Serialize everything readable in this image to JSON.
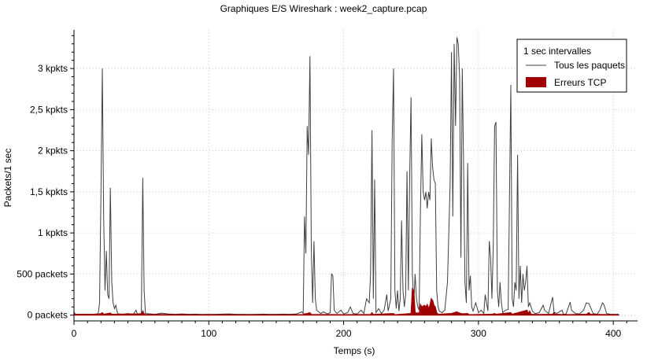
{
  "chart_data": {
    "type": "line",
    "title": "Graphiques E/S Wireshark : week2_capture.pcap",
    "xlabel": "Temps (s)",
    "ylabel": "Packets/1 sec",
    "xlim": [
      0,
      418
    ],
    "ylim": [
      -70,
      3470
    ],
    "x_ticks": [
      0,
      100,
      200,
      300,
      400
    ],
    "x_tick_labels": [
      "0",
      "100",
      "200",
      "300",
      "400"
    ],
    "y_ticks": [
      0,
      500,
      1000,
      1500,
      2000,
      2500,
      3000
    ],
    "y_tick_labels": [
      "0 packets",
      "500 packets",
      "1 kpkts",
      "1,5 kpkts",
      "2 kpkts",
      "2,5 kpkts",
      "3 kpkts"
    ],
    "grid": true,
    "legend": {
      "placement": "top-right",
      "title": "1 sec intervalles",
      "entries": [
        {
          "label": "Tous les paquets",
          "style": "line",
          "color": "#404040"
        },
        {
          "label": "Erreurs TCP",
          "style": "area",
          "color": "#a00000"
        }
      ]
    },
    "series": [
      {
        "name": "Tous les paquets",
        "color": "#404040",
        "points": [
          [
            0,
            40
          ],
          [
            1,
            10
          ],
          [
            3,
            5
          ],
          [
            6,
            8
          ],
          [
            9,
            12
          ],
          [
            12,
            5
          ],
          [
            15,
            10
          ],
          [
            18,
            20
          ],
          [
            19,
            150
          ],
          [
            20,
            1500
          ],
          [
            21,
            3000
          ],
          [
            22,
            1200
          ],
          [
            23,
            300
          ],
          [
            24,
            780
          ],
          [
            25,
            250
          ],
          [
            26,
            200
          ],
          [
            27,
            1550
          ],
          [
            28,
            400
          ],
          [
            29,
            150
          ],
          [
            30,
            80
          ],
          [
            31,
            120
          ],
          [
            32,
            40
          ],
          [
            33,
            15
          ],
          [
            36,
            10
          ],
          [
            40,
            20
          ],
          [
            44,
            10
          ],
          [
            46,
            60
          ],
          [
            47,
            15
          ],
          [
            50,
            20
          ],
          [
            51,
            1670
          ],
          [
            52,
            300
          ],
          [
            53,
            20
          ],
          [
            57,
            15
          ],
          [
            60,
            10
          ],
          [
            65,
            25
          ],
          [
            70,
            15
          ],
          [
            75,
            10
          ],
          [
            80,
            15
          ],
          [
            85,
            10
          ],
          [
            90,
            12
          ],
          [
            95,
            8
          ],
          [
            100,
            10
          ],
          [
            105,
            10
          ],
          [
            110,
            12
          ],
          [
            115,
            15
          ],
          [
            120,
            10
          ],
          [
            125,
            10
          ],
          [
            130,
            8
          ],
          [
            135,
            10
          ],
          [
            140,
            12
          ],
          [
            145,
            10
          ],
          [
            150,
            10
          ],
          [
            155,
            12
          ],
          [
            160,
            10
          ],
          [
            165,
            15
          ],
          [
            169,
            40
          ],
          [
            170,
            20
          ],
          [
            171,
            1200
          ],
          [
            172,
            750
          ],
          [
            173,
            2300
          ],
          [
            174,
            1950
          ],
          [
            175,
            3150
          ],
          [
            176,
            800
          ],
          [
            177,
            150
          ],
          [
            178,
            900
          ],
          [
            179,
            200
          ],
          [
            180,
            60
          ],
          [
            183,
            20
          ],
          [
            185,
            40
          ],
          [
            188,
            15
          ],
          [
            190,
            30
          ],
          [
            191,
            500
          ],
          [
            192,
            480
          ],
          [
            193,
            60
          ],
          [
            195,
            20
          ],
          [
            198,
            60
          ],
          [
            200,
            15
          ],
          [
            203,
            30
          ],
          [
            205,
            100
          ],
          [
            207,
            20
          ],
          [
            210,
            15
          ],
          [
            213,
            60
          ],
          [
            215,
            20
          ],
          [
            217,
            200
          ],
          [
            219,
            150
          ],
          [
            220,
            500
          ],
          [
            221,
            2250
          ],
          [
            222,
            200
          ],
          [
            223,
            1650
          ],
          [
            224,
            30
          ],
          [
            226,
            80
          ],
          [
            228,
            20
          ],
          [
            230,
            60
          ],
          [
            232,
            250
          ],
          [
            233,
            50
          ],
          [
            235,
            200
          ],
          [
            236,
            2100
          ],
          [
            237,
            3000
          ],
          [
            238,
            300
          ],
          [
            239,
            80
          ],
          [
            240,
            300
          ],
          [
            241,
            50
          ],
          [
            242,
            200
          ],
          [
            243,
            1150
          ],
          [
            244,
            300
          ],
          [
            245,
            100
          ],
          [
            246,
            250
          ],
          [
            247,
            1750
          ],
          [
            248,
            300
          ],
          [
            249,
            1700
          ],
          [
            250,
            2650
          ],
          [
            251,
            500
          ],
          [
            252,
            150
          ],
          [
            253,
            500
          ],
          [
            254,
            200
          ],
          [
            255,
            100
          ],
          [
            256,
            60
          ],
          [
            257,
            1300
          ],
          [
            258,
            2200
          ],
          [
            259,
            1500
          ],
          [
            260,
            1400
          ],
          [
            261,
            1500
          ],
          [
            262,
            1300
          ],
          [
            263,
            1500
          ],
          [
            264,
            1400
          ],
          [
            265,
            2150
          ],
          [
            266,
            1800
          ],
          [
            267,
            1650
          ],
          [
            268,
            1600
          ],
          [
            269,
            300
          ],
          [
            270,
            100
          ],
          [
            271,
            50
          ],
          [
            273,
            30
          ],
          [
            275,
            60
          ],
          [
            277,
            400
          ],
          [
            278,
            1000
          ],
          [
            279,
            1600
          ],
          [
            280,
            3200
          ],
          [
            281,
            1200
          ],
          [
            282,
            3300
          ],
          [
            283,
            2300
          ],
          [
            284,
            3380
          ],
          [
            285,
            3300
          ],
          [
            286,
            2900
          ],
          [
            287,
            700
          ],
          [
            288,
            3000
          ],
          [
            289,
            1800
          ],
          [
            290,
            400
          ],
          [
            291,
            150
          ],
          [
            292,
            1850
          ],
          [
            293,
            300
          ],
          [
            294,
            480
          ],
          [
            295,
            100
          ],
          [
            296,
            50
          ],
          [
            298,
            150
          ],
          [
            300,
            30
          ],
          [
            302,
            60
          ],
          [
            304,
            20
          ],
          [
            305,
            250
          ],
          [
            307,
            50
          ],
          [
            308,
            900
          ],
          [
            309,
            700
          ],
          [
            310,
            200
          ],
          [
            311,
            850
          ],
          [
            312,
            2300
          ],
          [
            313,
            2350
          ],
          [
            314,
            300
          ],
          [
            315,
            100
          ],
          [
            316,
            400
          ],
          [
            317,
            150
          ],
          [
            318,
            30
          ],
          [
            320,
            60
          ],
          [
            322,
            70
          ],
          [
            324,
            2800
          ],
          [
            325,
            200
          ],
          [
            326,
            100
          ],
          [
            327,
            400
          ],
          [
            328,
            300
          ],
          [
            329,
            1950
          ],
          [
            330,
            200
          ],
          [
            331,
            600
          ],
          [
            332,
            150
          ],
          [
            333,
            500
          ],
          [
            334,
            300
          ],
          [
            335,
            400
          ],
          [
            336,
            600
          ],
          [
            337,
            100
          ],
          [
            338,
            150
          ],
          [
            340,
            50
          ],
          [
            342,
            20
          ],
          [
            345,
            30
          ],
          [
            348,
            120
          ],
          [
            349,
            60
          ],
          [
            352,
            20
          ],
          [
            355,
            220
          ],
          [
            356,
            40
          ],
          [
            358,
            20
          ],
          [
            362,
            60
          ],
          [
            363,
            10
          ],
          [
            365,
            15
          ],
          [
            368,
            160
          ],
          [
            369,
            60
          ],
          [
            372,
            20
          ],
          [
            375,
            15
          ],
          [
            378,
            60
          ],
          [
            380,
            150
          ],
          [
            382,
            140
          ],
          [
            383,
            100
          ],
          [
            385,
            20
          ],
          [
            388,
            10
          ],
          [
            390,
            60
          ],
          [
            392,
            150
          ],
          [
            393,
            130
          ],
          [
            395,
            20
          ],
          [
            398,
            10
          ],
          [
            404,
            10
          ]
        ]
      },
      {
        "name": "Erreurs TCP",
        "color": "#a00000",
        "points": [
          [
            0,
            10
          ],
          [
            18,
            10
          ],
          [
            20,
            20
          ],
          [
            21,
            30
          ],
          [
            22,
            10
          ],
          [
            27,
            25
          ],
          [
            28,
            10
          ],
          [
            50,
            15
          ],
          [
            51,
            50
          ],
          [
            52,
            15
          ],
          [
            53,
            5
          ],
          [
            60,
            8
          ],
          [
            100,
            5
          ],
          [
            170,
            5
          ],
          [
            171,
            15
          ],
          [
            173,
            20
          ],
          [
            175,
            30
          ],
          [
            176,
            8
          ],
          [
            200,
            5
          ],
          [
            220,
            8
          ],
          [
            221,
            30
          ],
          [
            222,
            8
          ],
          [
            237,
            20
          ],
          [
            238,
            5
          ],
          [
            250,
            20
          ],
          [
            251,
            320
          ],
          [
            252,
            300
          ],
          [
            253,
            40
          ],
          [
            254,
            20
          ],
          [
            255,
            30
          ],
          [
            256,
            10
          ],
          [
            257,
            130
          ],
          [
            258,
            100
          ],
          [
            259,
            110
          ],
          [
            260,
            120
          ],
          [
            261,
            100
          ],
          [
            262,
            130
          ],
          [
            263,
            80
          ],
          [
            264,
            120
          ],
          [
            265,
            200
          ],
          [
            266,
            180
          ],
          [
            267,
            120
          ],
          [
            268,
            100
          ],
          [
            269,
            30
          ],
          [
            270,
            10
          ],
          [
            280,
            20
          ],
          [
            284,
            40
          ],
          [
            285,
            30
          ],
          [
            288,
            15
          ],
          [
            292,
            20
          ],
          [
            293,
            5
          ],
          [
            310,
            10
          ],
          [
            312,
            20
          ],
          [
            313,
            10
          ],
          [
            324,
            30
          ],
          [
            325,
            10
          ],
          [
            336,
            60
          ],
          [
            337,
            20
          ],
          [
            338,
            50
          ],
          [
            339,
            10
          ],
          [
            345,
            8
          ],
          [
            355,
            10
          ],
          [
            356,
            30
          ],
          [
            357,
            10
          ],
          [
            365,
            5
          ],
          [
            380,
            10
          ],
          [
            382,
            30
          ],
          [
            383,
            10
          ],
          [
            404,
            5
          ]
        ]
      }
    ]
  }
}
